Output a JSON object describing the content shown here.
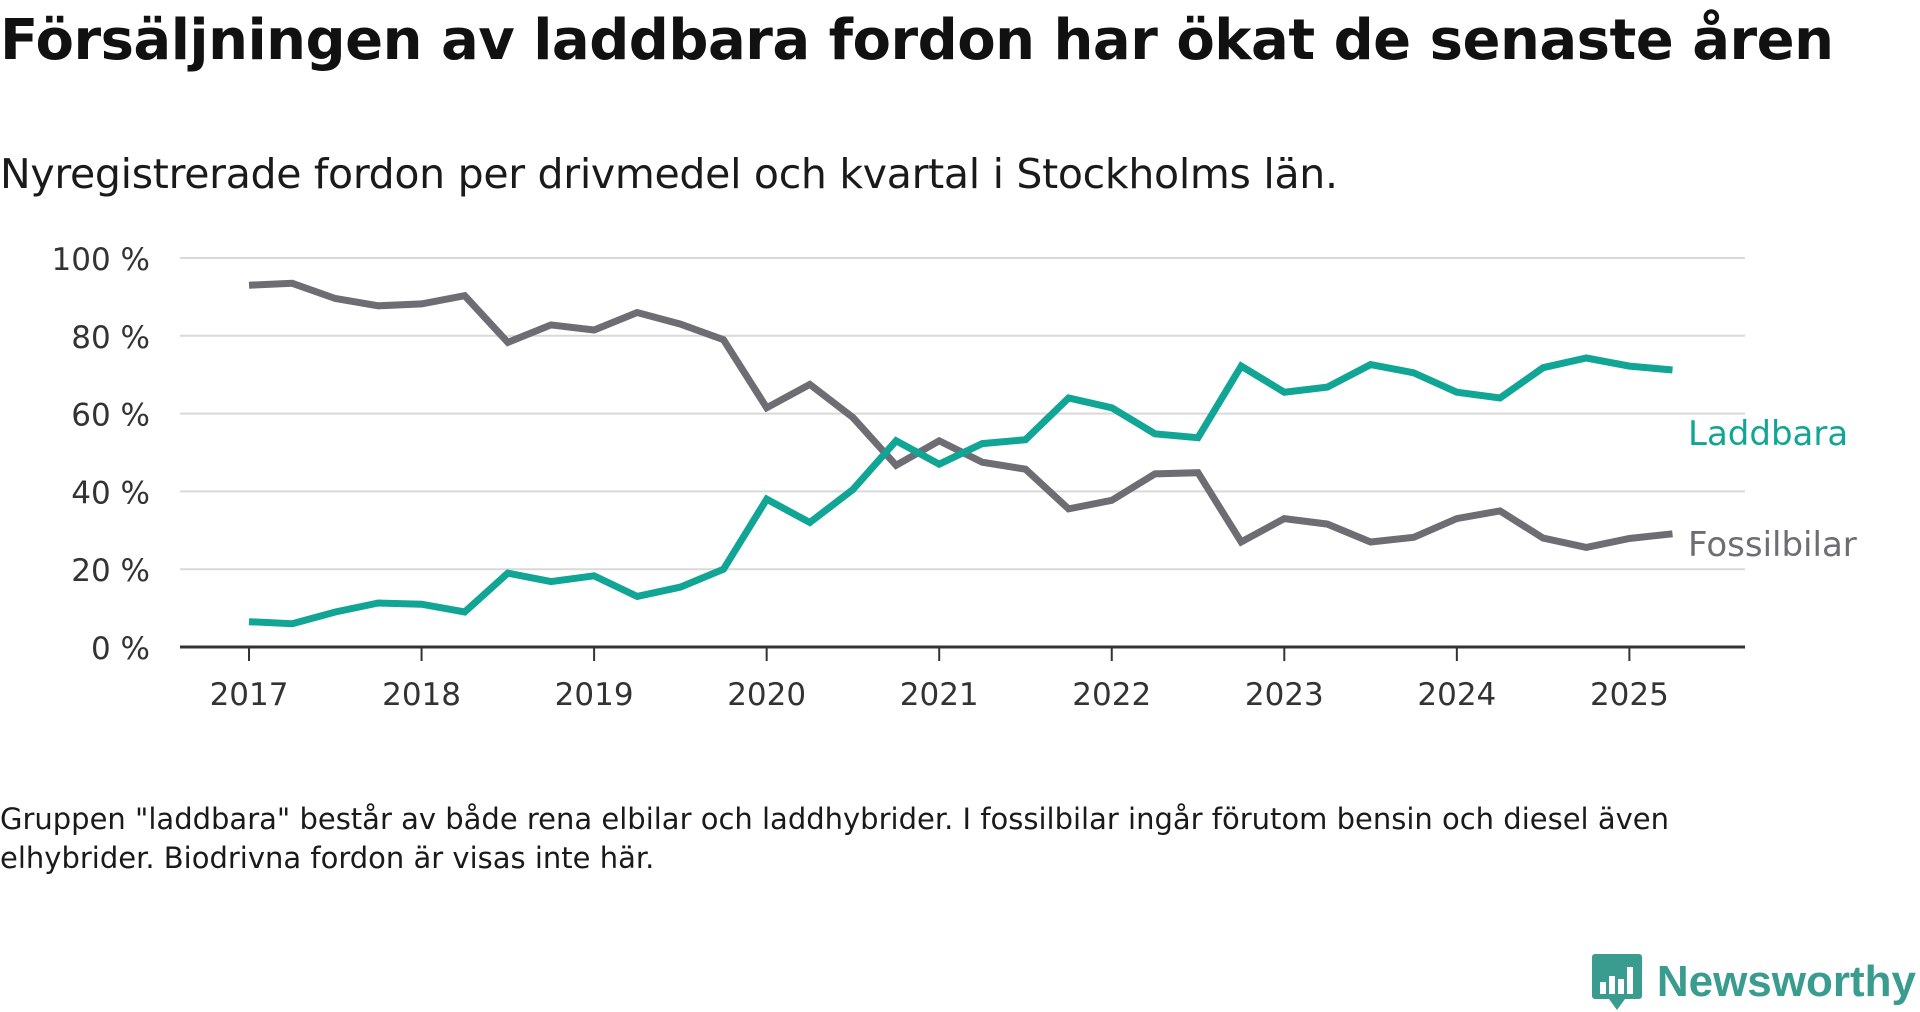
{
  "header": {
    "title": "Försäljningen av laddbara fordon har ökat de senaste åren",
    "subtitle": "Nyregistrerade fordon per drivmedel och kvartal i Stockholms län."
  },
  "footnote": "Gruppen \"laddbara\" består av både rena elbilar och laddhybrider. I fossilbilar ingår förutom bensin och diesel även elhybrider. Biodrivna fordon är visas inte här.",
  "brand": {
    "name": "Newsworthy",
    "icon": "newsworthy-logo-icon",
    "color": "#3a9b8f"
  },
  "chart_data": {
    "type": "line",
    "title": "Försäljningen av laddbara fordon har ökat de senaste åren",
    "subtitle": "Nyregistrerade fordon per drivmedel och kvartal i Stockholms län.",
    "xlabel": "",
    "ylabel": "",
    "ylim": [
      0,
      100
    ],
    "xlim": [
      2016.6,
      2025.67
    ],
    "grid": true,
    "legend": "inline labels at line ends",
    "x_ticks": [
      2017,
      2018,
      2019,
      2020,
      2021,
      2022,
      2023,
      2024,
      2025
    ],
    "x_tick_labels": [
      "2017",
      "2018",
      "2019",
      "2020",
      "2021",
      "2022",
      "2023",
      "2024",
      "2025"
    ],
    "y_ticks": [
      0,
      20,
      40,
      60,
      80,
      100
    ],
    "y_tick_labels": [
      "0 %",
      "20 %",
      "40 %",
      "60 %",
      "80 %",
      "100 %"
    ],
    "x": [
      2017,
      2017.25,
      2017.5,
      2017.75,
      2018,
      2018.25,
      2018.5,
      2018.75,
      2019,
      2019.25,
      2019.5,
      2019.75,
      2020,
      2020.25,
      2020.5,
      2020.75,
      2021,
      2021.25,
      2021.5,
      2021.75,
      2022,
      2022.25,
      2022.5,
      2022.75,
      2023,
      2023.25,
      2023.5,
      2023.75,
      2024,
      2024.25,
      2024.5,
      2024.75,
      2025,
      2025.25
    ],
    "series": [
      {
        "name": "Laddbara",
        "color": "#10a595",
        "values": [
          6.5,
          6,
          9,
          11.3,
          11,
          9,
          19,
          16.8,
          18.3,
          13,
          15.4,
          20,
          38,
          32,
          40.5,
          53,
          47,
          52.3,
          53.3,
          64,
          61.5,
          54.8,
          53.8,
          72.2,
          65.5,
          66.8,
          72.6,
          70.5,
          65.5,
          64,
          71.8,
          74.3,
          72.2,
          71.2
        ]
      },
      {
        "name": "Fossilbilar",
        "color": "#6e6d73",
        "values": [
          93,
          93.5,
          89.6,
          87.7,
          88.2,
          90.3,
          78.3,
          82.8,
          81.5,
          86,
          83,
          79,
          61.5,
          67.5,
          59,
          46.7,
          53,
          47.5,
          45.7,
          35.5,
          37.7,
          44.5,
          44.8,
          27,
          33,
          31.6,
          27,
          28.2,
          33,
          35,
          28,
          25.6,
          27.9,
          29.1
        ]
      }
    ]
  }
}
